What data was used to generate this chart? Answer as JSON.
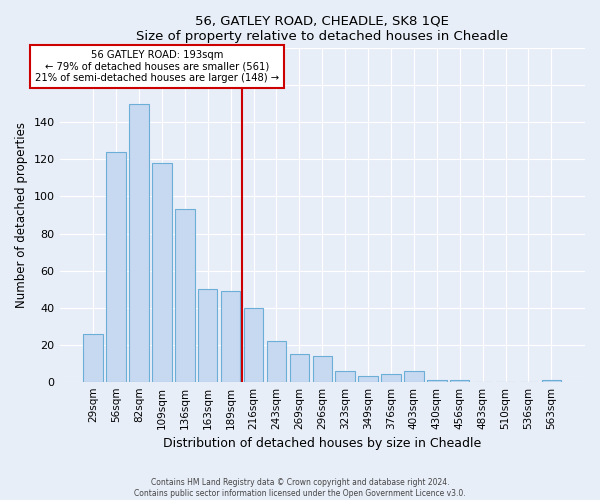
{
  "title": "56, GATLEY ROAD, CHEADLE, SK8 1QE",
  "subtitle": "Size of property relative to detached houses in Cheadle",
  "xlabel": "Distribution of detached houses by size in Cheadle",
  "ylabel": "Number of detached properties",
  "bar_labels": [
    "29sqm",
    "56sqm",
    "82sqm",
    "109sqm",
    "136sqm",
    "163sqm",
    "189sqm",
    "216sqm",
    "243sqm",
    "269sqm",
    "296sqm",
    "323sqm",
    "349sqm",
    "376sqm",
    "403sqm",
    "430sqm",
    "456sqm",
    "483sqm",
    "510sqm",
    "536sqm",
    "563sqm"
  ],
  "bar_values": [
    26,
    124,
    150,
    118,
    93,
    50,
    49,
    40,
    22,
    15,
    14,
    6,
    3,
    4,
    6,
    1,
    1,
    0,
    0,
    0,
    1
  ],
  "bar_color": "#c6d9f0",
  "bar_edge_color": "#6baed6",
  "annotation_title": "56 GATLEY ROAD: 193sqm",
  "annotation_line1": "← 79% of detached houses are smaller (561)",
  "annotation_line2": "21% of semi-detached houses are larger (148) →",
  "ylim": [
    0,
    180
  ],
  "yticks": [
    0,
    20,
    40,
    60,
    80,
    100,
    120,
    140,
    160,
    180
  ],
  "footer_line1": "Contains HM Land Registry data © Crown copyright and database right 2024.",
  "footer_line2": "Contains public sector information licensed under the Open Government Licence v3.0.",
  "bg_color": "#e8eef8",
  "plot_bg_color": "#e8eef8",
  "ref_line_color": "#cc0000",
  "ref_bar_index": 6,
  "grid_color": "#ffffff"
}
